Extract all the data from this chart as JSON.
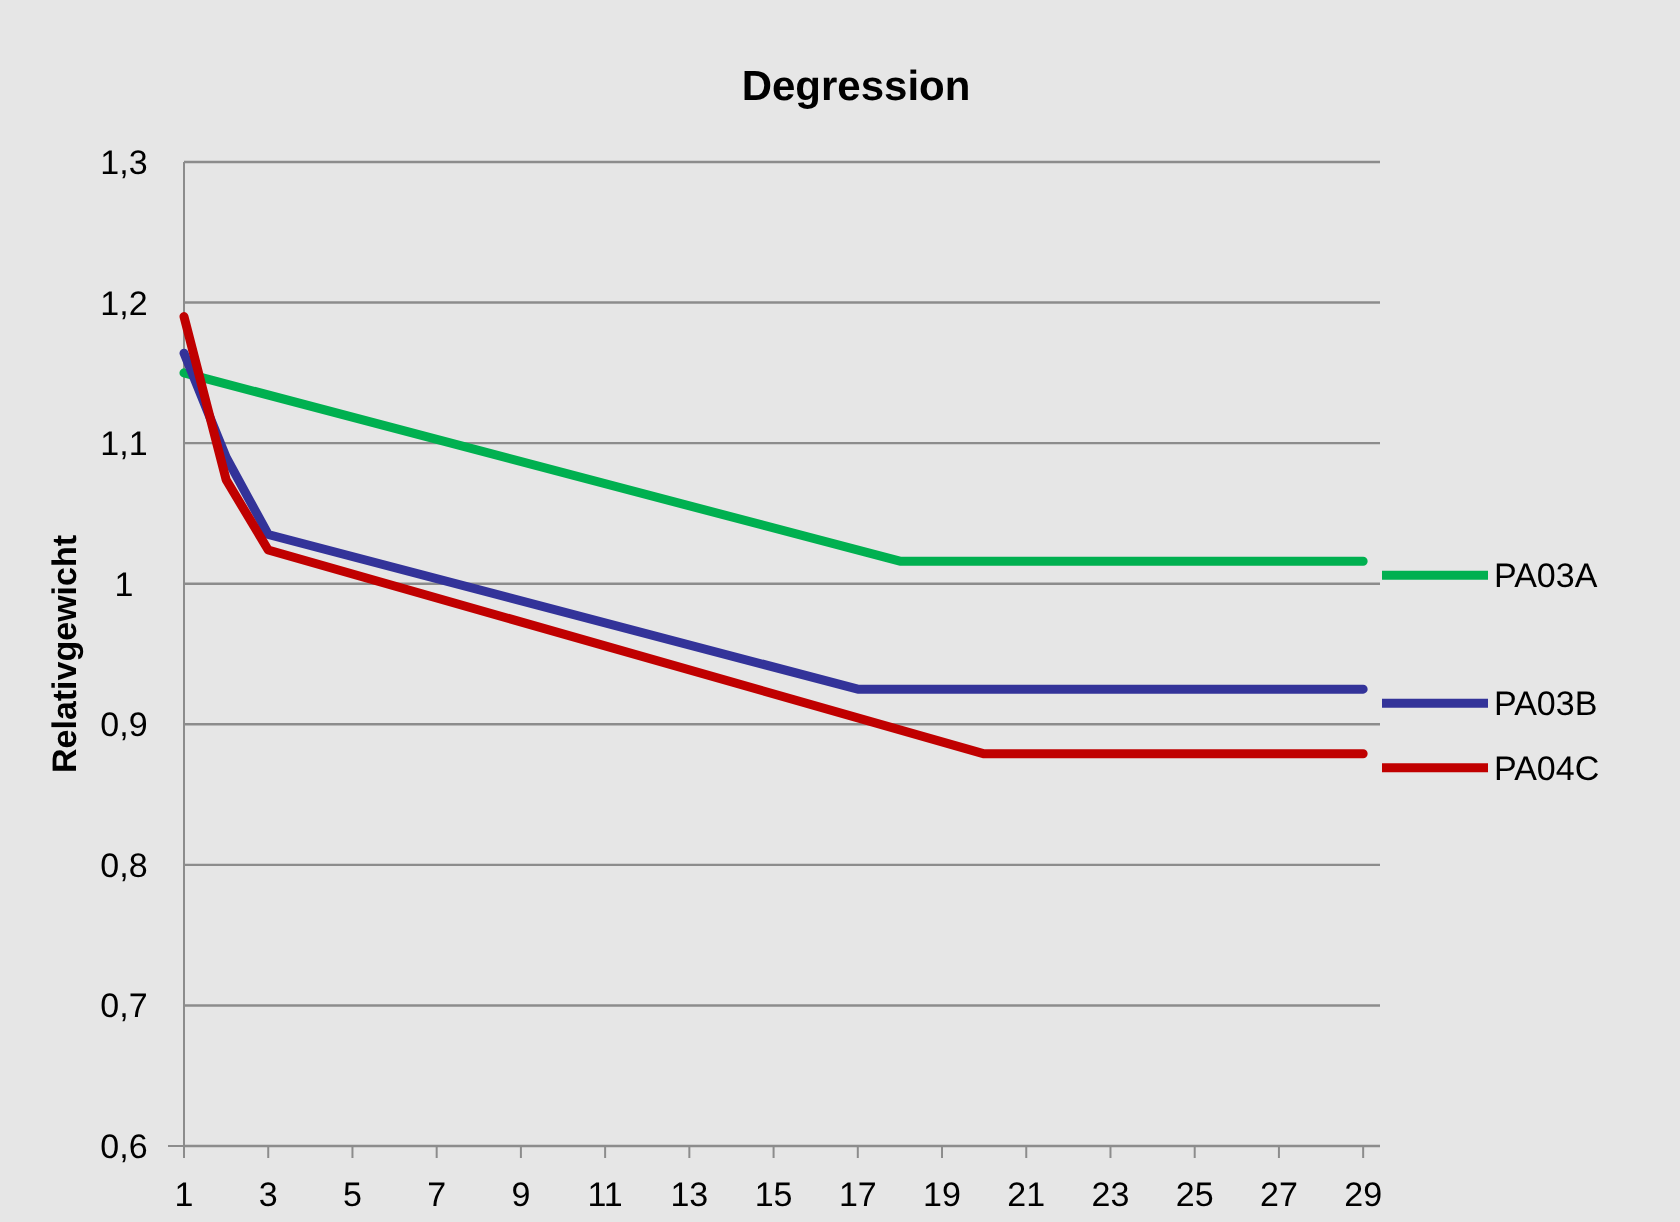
{
  "chart_data": {
    "type": "line",
    "title": "Degression",
    "ylabel": "Relativgewicht",
    "xlim": [
      1,
      29.4
    ],
    "xticks": [
      1,
      3,
      5,
      7,
      9,
      11,
      13,
      15,
      17,
      19,
      21,
      23,
      25,
      27,
      29
    ],
    "ylim": [
      0.6,
      1.3
    ],
    "yticks": [
      {
        "value": 0.6,
        "label": "0,6"
      },
      {
        "value": 0.7,
        "label": "0,7"
      },
      {
        "value": 0.8,
        "label": "0,8"
      },
      {
        "value": 0.9,
        "label": "0,9"
      },
      1,
      {
        "value": 1.1,
        "label": "1,1"
      },
      {
        "value": 1.2,
        "label": "1,2"
      },
      {
        "value": 1.3,
        "label": "1,3"
      }
    ],
    "grid": "y",
    "legend": "right",
    "marker": "none",
    "line_style": "solid",
    "series": [
      {
        "name": "PA03A",
        "color": "#00b050",
        "x": [
          1,
          18,
          29
        ],
        "values": [
          1.15,
          1.016,
          1.016
        ]
      },
      {
        "name": "PA03B",
        "color": "#333399",
        "x": [
          1,
          2,
          3,
          17,
          29
        ],
        "values": [
          1.164,
          1.09,
          1.035,
          0.925,
          0.925
        ]
      },
      {
        "name": "PA04C",
        "color": "#c00000",
        "x": [
          1,
          2,
          3,
          20,
          29
        ],
        "values": [
          1.19,
          1.074,
          1.024,
          0.879,
          0.879
        ]
      }
    ]
  }
}
